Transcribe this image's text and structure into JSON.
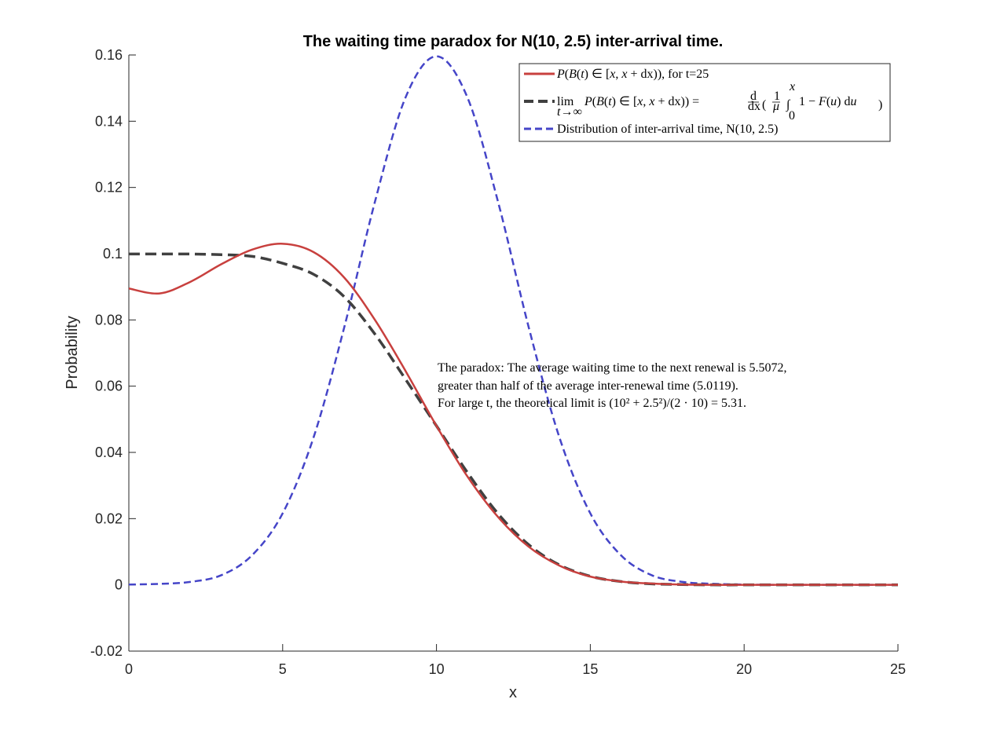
{
  "chart_data": {
    "type": "line",
    "title": "The waiting time paradox for N(10, 2.5) inter-arrival time.",
    "xlabel": "x",
    "ylabel": "Probability",
    "xlim": [
      0,
      25
    ],
    "ylim": [
      -0.02,
      0.16
    ],
    "xticks": [
      "0",
      "5",
      "10",
      "15",
      "20",
      "25"
    ],
    "yticks": [
      "-0.02",
      "0",
      "0.02",
      "0.04",
      "0.06",
      "0.08",
      "0.1",
      "0.12",
      "0.14",
      "0.16"
    ],
    "legend_position": "top-right",
    "series": [
      {
        "name": "P(B(t) ∈ [x, x + dx)), for t=25",
        "color": "#c8403e",
        "style": "solid",
        "x": [
          0,
          1,
          2,
          3,
          4,
          5,
          6,
          7,
          8,
          9,
          10,
          11,
          12,
          13,
          14,
          15,
          16,
          17,
          18,
          19,
          20,
          21,
          22,
          23,
          24,
          25
        ],
        "y": [
          0.0895,
          0.088,
          0.0915,
          0.0968,
          0.1012,
          0.103,
          0.1005,
          0.0928,
          0.08,
          0.0645,
          0.048,
          0.0328,
          0.0205,
          0.0115,
          0.0058,
          0.0025,
          0.001,
          0.0004,
          0.0001,
          0,
          0,
          0,
          0,
          0,
          0,
          0
        ]
      },
      {
        "name": "lim t→∞ P(B(t) ∈ [x, x + dx)) = d/dx (1/μ ∫0x 1 − F(u) du)",
        "color": "#404040",
        "style": "dashed",
        "x": [
          0,
          1,
          2,
          3,
          4,
          5,
          6,
          7,
          8,
          9,
          10,
          11,
          12,
          13,
          14,
          15,
          16,
          17,
          18,
          19,
          20,
          21,
          22,
          23,
          24,
          25
        ],
        "y": [
          0.0999,
          0.0999,
          0.0999,
          0.0997,
          0.0992,
          0.0971,
          0.0938,
          0.087,
          0.0757,
          0.062,
          0.048,
          0.034,
          0.0215,
          0.0121,
          0.006,
          0.0026,
          0.001,
          0.0003,
          0.0001,
          0,
          0,
          0,
          0,
          0,
          0,
          0
        ]
      },
      {
        "name": "Distribution of inter-arrival time, N(10, 2.5)",
        "color": "#4545c8",
        "style": "dashed",
        "x": [
          0,
          1,
          2,
          3,
          4,
          5,
          6,
          7,
          8,
          9,
          10,
          11,
          12,
          13,
          14,
          15,
          16,
          17,
          18,
          19,
          20,
          21,
          22,
          23,
          24,
          25
        ],
        "y": [
          0.0001,
          0.0003,
          0.0009,
          0.0029,
          0.0089,
          0.0216,
          0.0444,
          0.0777,
          0.1157,
          0.1473,
          0.1596,
          0.1473,
          0.1157,
          0.0777,
          0.0444,
          0.0216,
          0.0089,
          0.0029,
          0.0009,
          0.0003,
          0.0001,
          0,
          0,
          0,
          0,
          0
        ]
      }
    ],
    "annotation_lines": [
      "The paradox: The average waiting time to the next renewal is 5.5072,",
      "greater than half of the average inter-renewal time (5.0119).",
      "For large t, the theoretical limit is (10² + 2.5²)/(2 · 10) = 5.31."
    ]
  }
}
